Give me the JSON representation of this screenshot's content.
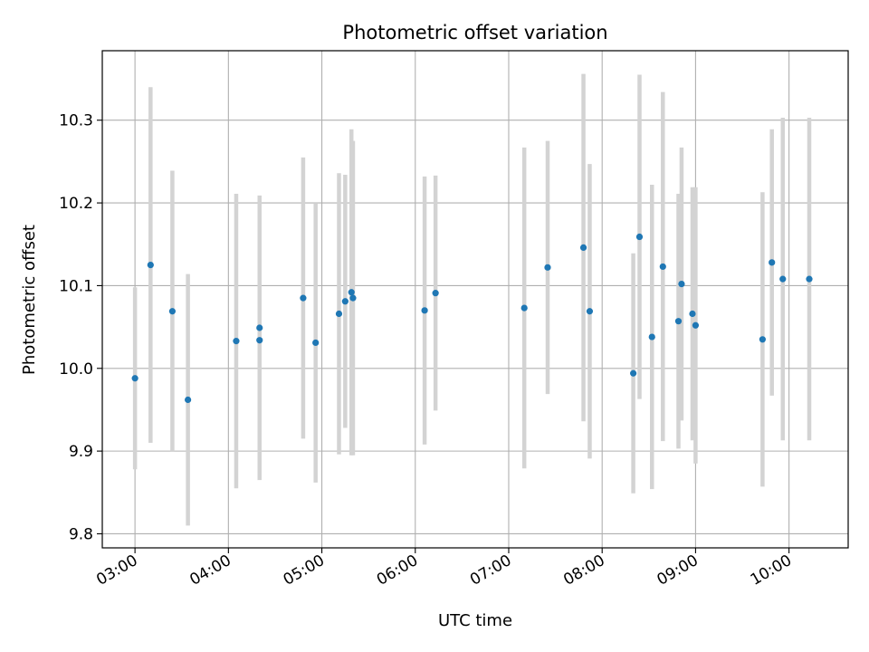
{
  "chart_data": {
    "type": "scatter",
    "title": "Photometric offset variation",
    "xlabel": "UTC time",
    "ylabel": "Photometric offset",
    "xlim": [
      "02:39",
      "10:38"
    ],
    "ylim": [
      9.783,
      10.384
    ],
    "xticks": [
      "03:00",
      "04:00",
      "05:00",
      "06:00",
      "07:00",
      "08:00",
      "09:00",
      "10:00"
    ],
    "yticks": [
      "9.8",
      "9.9",
      "10.0",
      "10.1",
      "10.2",
      "10.3"
    ],
    "grid": true,
    "point_color": "#1f77b4",
    "errorbar_color": "#d3d3d3",
    "points": [
      {
        "t": "03:00",
        "y": 9.988,
        "err": 0.11
      },
      {
        "t": "03:10",
        "y": 10.125,
        "err": 0.215
      },
      {
        "t": "03:24",
        "y": 10.069,
        "err": 0.17
      },
      {
        "t": "03:34",
        "y": 9.962,
        "err": 0.152
      },
      {
        "t": "04:05",
        "y": 10.033,
        "err": 0.178
      },
      {
        "t": "04:20",
        "y": 10.034,
        "err": 0.169
      },
      {
        "t": "04:20",
        "y": 10.049,
        "err": 0.16
      },
      {
        "t": "04:48",
        "y": 10.085,
        "err": 0.17
      },
      {
        "t": "04:56",
        "y": 10.031,
        "err": 0.169
      },
      {
        "t": "05:11",
        "y": 10.066,
        "err": 0.17
      },
      {
        "t": "05:15",
        "y": 10.081,
        "err": 0.153
      },
      {
        "t": "05:19",
        "y": 10.092,
        "err": 0.197
      },
      {
        "t": "05:20",
        "y": 10.085,
        "err": 0.19
      },
      {
        "t": "06:06",
        "y": 10.07,
        "err": 0.162
      },
      {
        "t": "06:13",
        "y": 10.091,
        "err": 0.142
      },
      {
        "t": "07:10",
        "y": 10.073,
        "err": 0.194
      },
      {
        "t": "07:25",
        "y": 10.122,
        "err": 0.153
      },
      {
        "t": "07:48",
        "y": 10.146,
        "err": 0.21
      },
      {
        "t": "07:52",
        "y": 10.069,
        "err": 0.178
      },
      {
        "t": "08:20",
        "y": 9.994,
        "err": 0.145
      },
      {
        "t": "08:24",
        "y": 10.159,
        "err": 0.196
      },
      {
        "t": "08:32",
        "y": 10.038,
        "err": 0.184
      },
      {
        "t": "08:39",
        "y": 10.123,
        "err": 0.211
      },
      {
        "t": "08:49",
        "y": 10.057,
        "err": 0.154
      },
      {
        "t": "08:51",
        "y": 10.102,
        "err": 0.165
      },
      {
        "t": "08:58",
        "y": 10.066,
        "err": 0.153
      },
      {
        "t": "09:00",
        "y": 10.052,
        "err": 0.167
      },
      {
        "t": "09:43",
        "y": 10.035,
        "err": 0.178
      },
      {
        "t": "09:49",
        "y": 10.128,
        "err": 0.161
      },
      {
        "t": "09:56",
        "y": 10.108,
        "err": 0.195
      },
      {
        "t": "10:13",
        "y": 10.108,
        "err": 0.195
      }
    ]
  }
}
